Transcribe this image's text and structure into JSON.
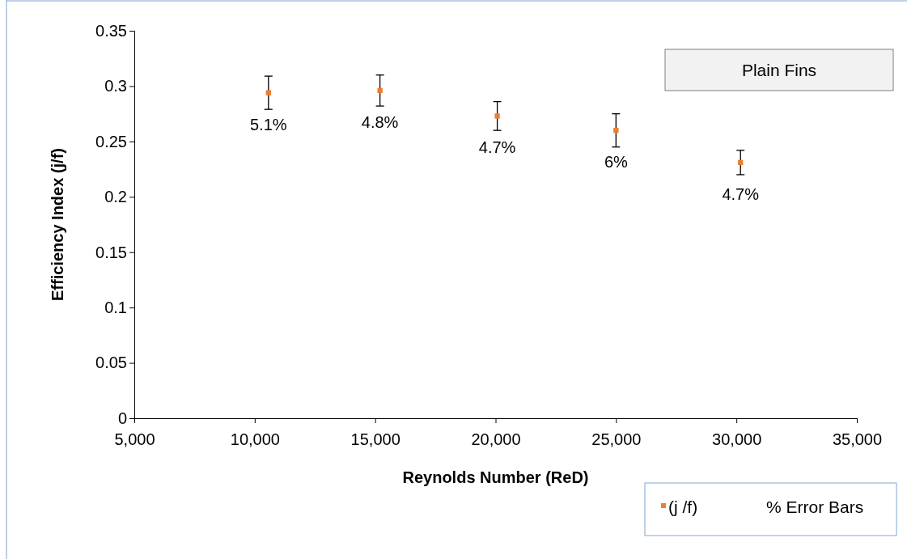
{
  "chart_data": {
    "type": "scatter",
    "title": "Plain Fins",
    "xlabel": "Reynolds Number (ReD)",
    "ylabel": "Efficiency Index (j/f)",
    "x": [
      10570,
      15200,
      20070,
      25000,
      30170
    ],
    "series": [
      {
        "name": "(j /f)",
        "color": "#ed7d31",
        "values": [
          0.294,
          0.296,
          0.273,
          0.26,
          0.231
        ],
        "errors": [
          0.015,
          0.014,
          0.013,
          0.015,
          0.011
        ]
      }
    ],
    "xlim": [
      5000,
      35000
    ],
    "xticks": [
      {
        "value": 5000,
        "label": "5,000"
      },
      {
        "value": 10000,
        "label": "10,000"
      },
      {
        "value": 15000,
        "label": "15,000"
      },
      {
        "value": 20000,
        "label": "20,000"
      },
      {
        "value": 25000,
        "label": "25,000"
      },
      {
        "value": 30000,
        "label": "30,000"
      },
      {
        "value": 35000,
        "label": "35,000"
      }
    ],
    "ylim": [
      0,
      0.35
    ],
    "yticks": [
      0,
      0.05,
      0.1,
      0.15,
      0.2,
      0.25,
      0.3,
      0.35
    ],
    "marker": "square",
    "grid": false,
    "legend": "bottom right",
    "annotations": [
      "% Error Bars",
      {
        "text": "5.1%",
        "x": 10570,
        "y": 0.294
      },
      {
        "text": "4.8%",
        "x": 15200,
        "y": 0.296
      },
      {
        "text": "4.7%",
        "x": 20070,
        "y": 0.273
      },
      {
        "text": "6%",
        "x": 25000,
        "y": 0.26
      },
      {
        "text": "4.7%",
        "x": 30170,
        "y": 0.231
      }
    ]
  }
}
